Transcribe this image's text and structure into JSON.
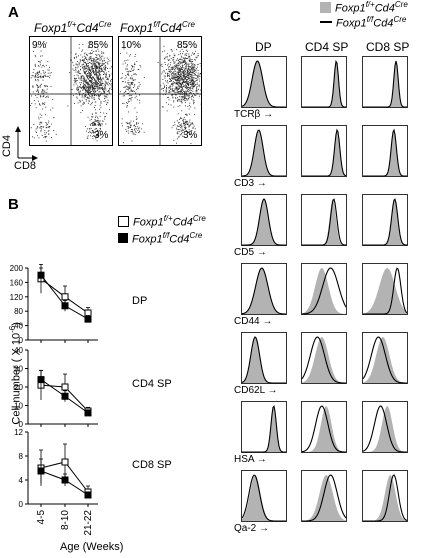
{
  "panel_a": {
    "letter": "A",
    "plots": [
      {
        "title_gene": "Foxp1",
        "title_sup": "f/+",
        "title_cre": "Cd4",
        "title_cre_sup": "Cre",
        "q_top_left": "9%",
        "q_top_right": "85%",
        "q_bottom_right": "3%"
      },
      {
        "title_gene": "Foxp1",
        "title_sup": "f/f",
        "title_cre": "Cd4",
        "title_cre_sup": "Cre",
        "q_top_left": "10%",
        "q_top_right": "85%",
        "q_bottom_right": "3%"
      }
    ],
    "y_axis": "CD4",
    "x_axis": "CD8"
  },
  "panel_b": {
    "letter": "B",
    "legend": [
      {
        "gene": "Foxp1",
        "sup": "f/+",
        "cre": "Cd4",
        "cre_sup": "Cre",
        "marker": "open-square"
      },
      {
        "gene": "Foxp1",
        "sup": "f/f",
        "cre": "Cd4",
        "cre_sup": "Cre",
        "marker": "filled-square"
      }
    ],
    "y_label": "Cell number ( X 10",
    "y_label_sup": "-6",
    "y_label_end": ")",
    "x_label": "Age (Weeks)",
    "x_ticks": [
      "4-5",
      "8-10",
      "21-22"
    ]
  },
  "chart_data": [
    {
      "type": "line",
      "title": "DP",
      "categories": [
        "4-5",
        "8-10",
        "21-22"
      ],
      "ylim": [
        0,
        200
      ],
      "yticks": [
        "0",
        "40",
        "80",
        "120",
        "160",
        "200"
      ],
      "series": [
        {
          "name": "Foxp1 f/+ Cd4 Cre",
          "values": [
            170,
            120,
            75
          ],
          "errors": [
            40,
            30,
            15
          ]
        },
        {
          "name": "Foxp1 f/f Cd4 Cre",
          "values": [
            180,
            95,
            58
          ],
          "errors": [
            20,
            15,
            10
          ]
        }
      ]
    },
    {
      "type": "line",
      "title": "CD4 SP",
      "categories": [
        "4-5",
        "8-10",
        "21-22"
      ],
      "ylim": [
        0,
        40
      ],
      "yticks": [
        "0",
        "10",
        "20",
        "30",
        "40"
      ],
      "series": [
        {
          "name": "Foxp1 f/+ Cd4 Cre",
          "values": [
            21,
            20,
            7
          ],
          "errors": [
            8,
            7,
            2
          ]
        },
        {
          "name": "Foxp1 f/f Cd4 Cre",
          "values": [
            24,
            15,
            6
          ],
          "errors": [
            5,
            3,
            1
          ]
        }
      ]
    },
    {
      "type": "line",
      "title": "CD8 SP",
      "categories": [
        "4-5",
        "8-10",
        "21-22"
      ],
      "ylim": [
        0,
        12
      ],
      "yticks": [
        "0",
        "4",
        "8",
        "12"
      ],
      "series": [
        {
          "name": "Foxp1 f/+ Cd4 Cre",
          "values": [
            6,
            7,
            2
          ],
          "errors": [
            3,
            3,
            1
          ]
        },
        {
          "name": "Foxp1 f/f Cd4 Cre",
          "values": [
            5.5,
            4,
            1.5
          ],
          "errors": [
            2,
            1,
            0.5
          ]
        }
      ]
    }
  ],
  "panel_c": {
    "letter": "C",
    "legend": [
      {
        "gene": "Foxp1",
        "sup": "f/+",
        "cre": "Cd4",
        "cre_sup": "Cre",
        "style": "gray-filled"
      },
      {
        "gene": "Foxp1",
        "sup": "f/f",
        "cre": "Cd4",
        "cre_sup": "Cre",
        "style": "black-line"
      }
    ],
    "columns": [
      "DP",
      "CD4 SP",
      "CD8 SP"
    ],
    "markers": [
      "TCRβ",
      "CD3",
      "CD5",
      "CD44",
      "CD62L",
      "HSA",
      "Qa-2"
    ],
    "arrow": "→"
  },
  "colors": {
    "gray_fill": "#b3b3b3",
    "black": "#000000"
  }
}
